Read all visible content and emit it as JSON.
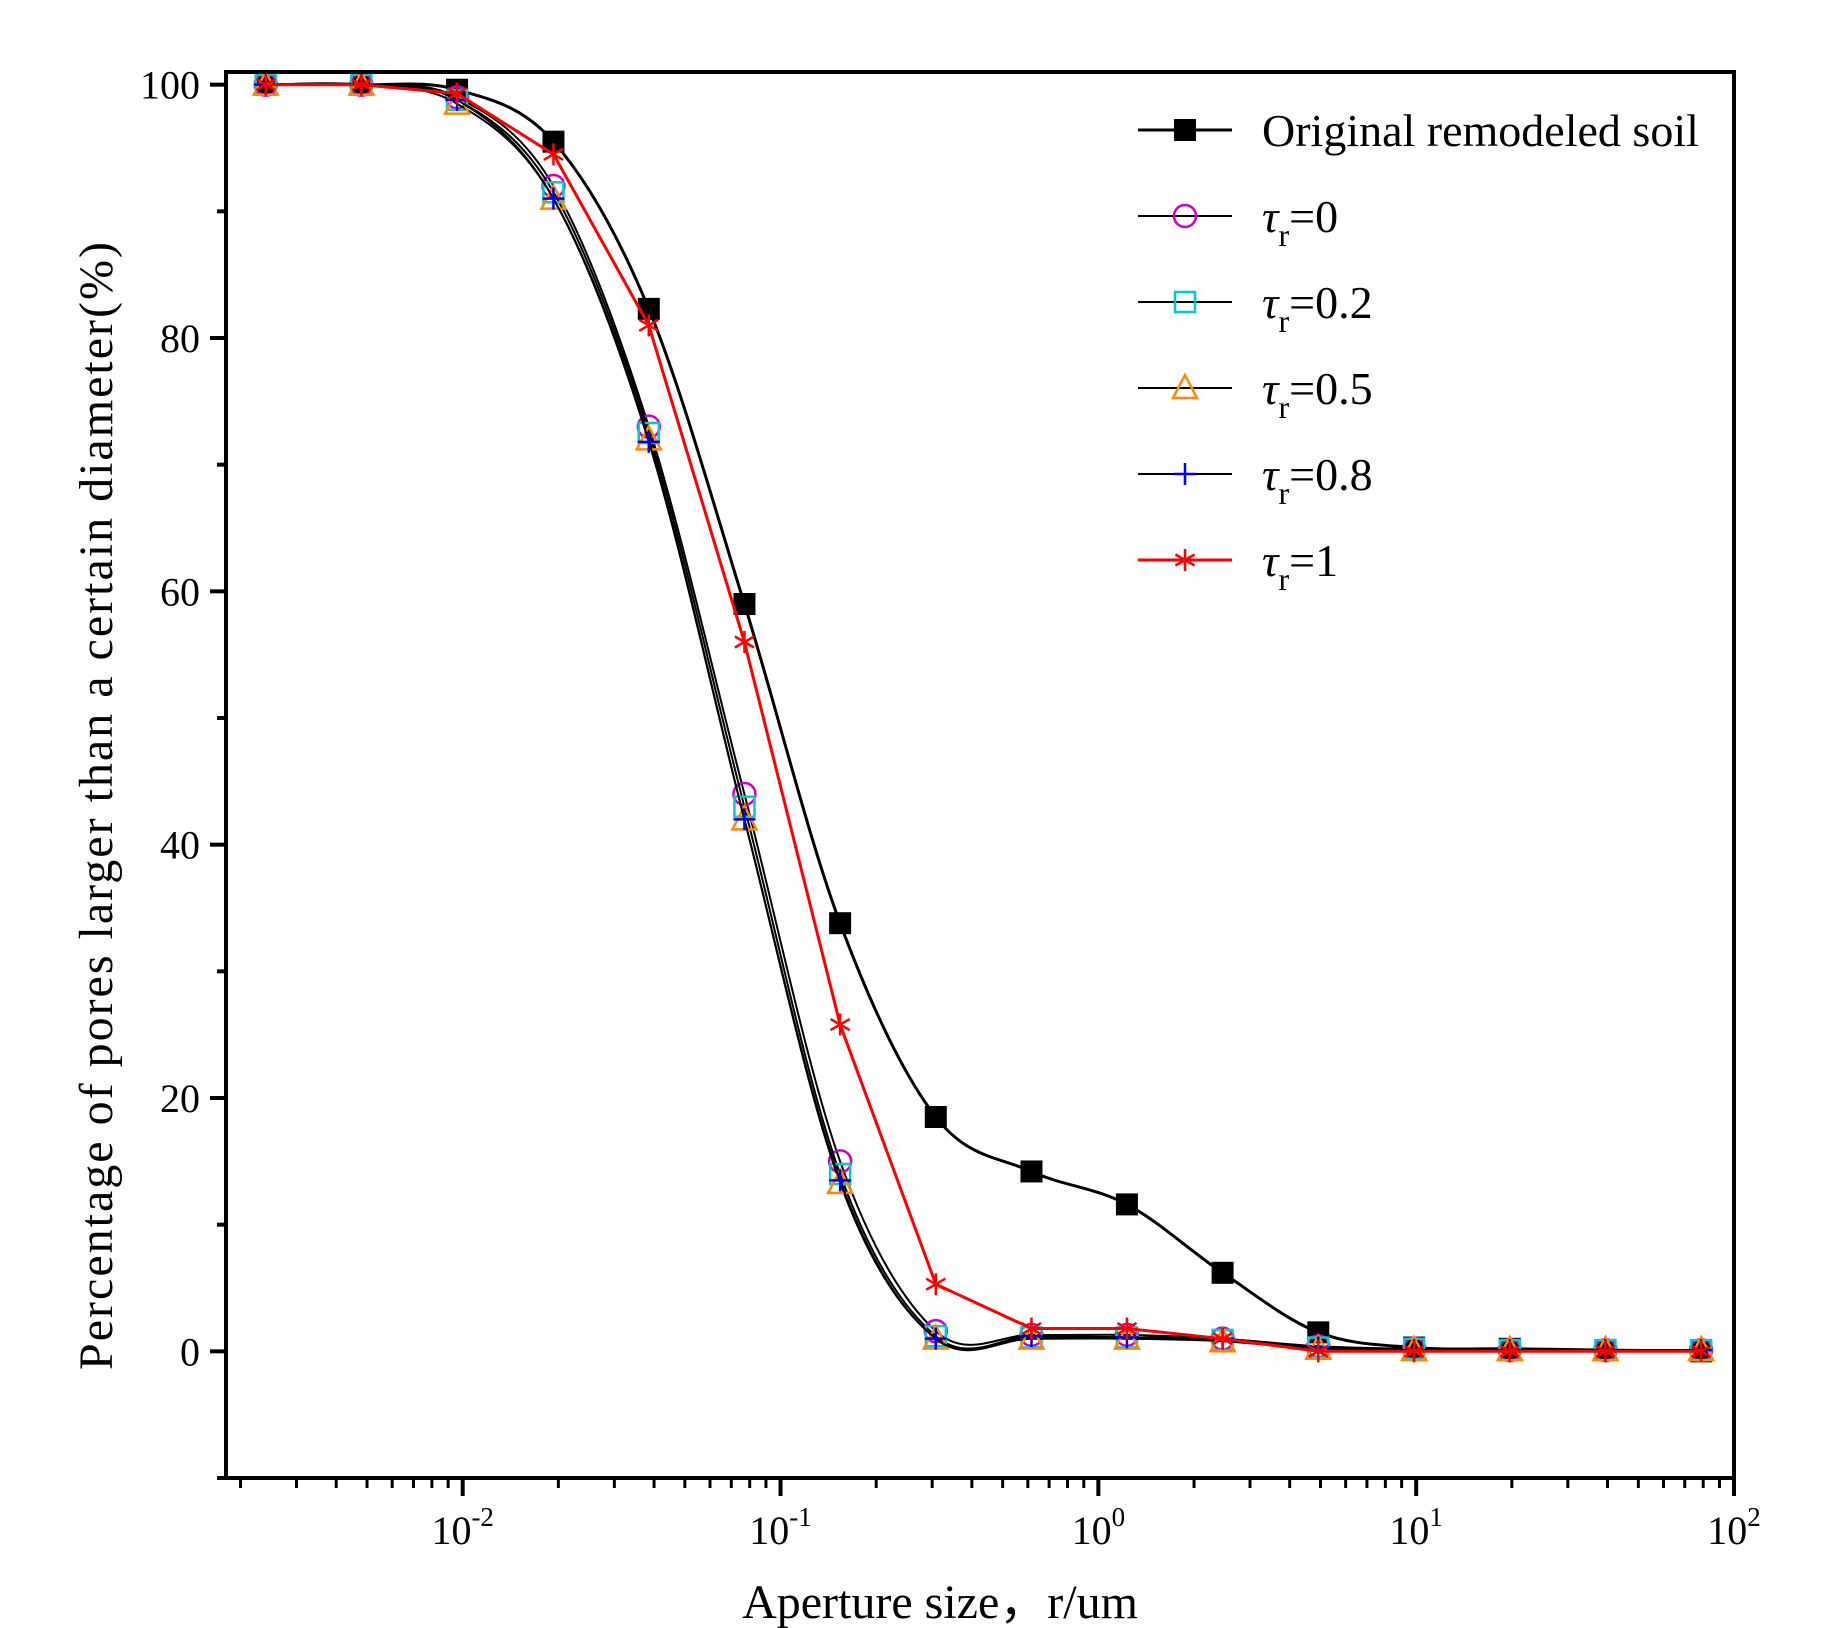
{
  "chart_data": {
    "type": "line",
    "title": "",
    "xlabel": "Aperture size，r/um",
    "ylabel": "Percentage of pores larger than a certain diameter(%)",
    "xscale": "log",
    "xlim": [
      0.0018,
      100
    ],
    "ylim": [
      -10,
      101
    ],
    "x_ticks": [
      {
        "value": 0.01,
        "base": "10",
        "exp": "-2"
      },
      {
        "value": 0.1,
        "base": "10",
        "exp": "-1"
      },
      {
        "value": 1,
        "base": "10",
        "exp": "0"
      },
      {
        "value": 10,
        "base": "10",
        "exp": "1"
      },
      {
        "value": 100,
        "base": "10",
        "exp": "2"
      }
    ],
    "y_ticks": [
      0,
      20,
      40,
      60,
      80,
      100
    ],
    "grid": false,
    "legend_position": "top-right",
    "x": [
      0.0024,
      0.0048,
      0.0096,
      0.0193,
      0.0385,
      0.077,
      0.154,
      0.308,
      0.616,
      1.23,
      2.46,
      4.92,
      9.85,
      19.7,
      39.4,
      78.8
    ],
    "series": [
      {
        "name": "Original remodeled soil",
        "legend_prefix": "",
        "legend_sub": "",
        "legend_suffix": "",
        "color": "#000000",
        "line_color": "#000000",
        "marker": "filled-square",
        "smooth": true,
        "values": [
          100,
          100,
          99.6,
          95.5,
          82.3,
          59.0,
          33.8,
          18.5,
          14.2,
          11.6,
          6.2,
          1.5,
          0.3,
          0.2,
          0.1,
          0.0
        ]
      },
      {
        "name": "τr=0",
        "legend_prefix": "τ",
        "legend_sub": "r",
        "legend_suffix": "=0",
        "color": "#cc00cc",
        "line_color": "#000000",
        "marker": "circle",
        "smooth": true,
        "values": [
          100,
          100,
          99.0,
          92.0,
          73.0,
          44.0,
          15.0,
          1.6,
          1.3,
          1.3,
          1.0,
          0.4,
          0.2,
          0.1,
          0.1,
          0.1
        ]
      },
      {
        "name": "τr=0.2",
        "legend_prefix": "τ",
        "legend_sub": "r",
        "legend_suffix": "=0.2",
        "color": "#00cccc",
        "line_color": "#000000",
        "marker": "square",
        "smooth": true,
        "values": [
          100,
          100,
          98.8,
          91.5,
          72.5,
          43.0,
          14.0,
          1.2,
          1.1,
          1.1,
          0.9,
          0.3,
          0.2,
          0.1,
          0.1,
          0.1
        ]
      },
      {
        "name": "τr=0.5",
        "legend_prefix": "τ",
        "legend_sub": "r",
        "legend_suffix": "=0.5",
        "color": "#ff8800",
        "line_color": "#000000",
        "marker": "triangle",
        "smooth": true,
        "values": [
          100,
          100,
          98.5,
          91.0,
          72.0,
          42.0,
          13.3,
          1.0,
          1.0,
          1.0,
          0.8,
          0.2,
          0.1,
          0.1,
          0.1,
          0.1
        ]
      },
      {
        "name": "τr=0.8",
        "legend_prefix": "τ",
        "legend_sub": "r",
        "legend_suffix": "=0.8",
        "color": "#0000ee",
        "line_color": "#000000",
        "marker": "plus",
        "smooth": true,
        "values": [
          100,
          100,
          98.8,
          91.0,
          71.8,
          42.0,
          13.5,
          1.0,
          1.2,
          1.1,
          1.0,
          0.3,
          0.1,
          0.1,
          0.1,
          0.1
        ]
      },
      {
        "name": "τr=1",
        "legend_prefix": "τ",
        "legend_sub": "r",
        "legend_suffix": "=1",
        "color": "#ff0000",
        "line_color": "#ff0000",
        "marker": "asterisk",
        "smooth": false,
        "values": [
          100,
          100,
          99.3,
          94.5,
          81.0,
          56.0,
          25.8,
          5.3,
          1.8,
          1.8,
          1.0,
          0.0,
          0.0,
          0.0,
          0.0,
          0.0
        ]
      }
    ]
  }
}
